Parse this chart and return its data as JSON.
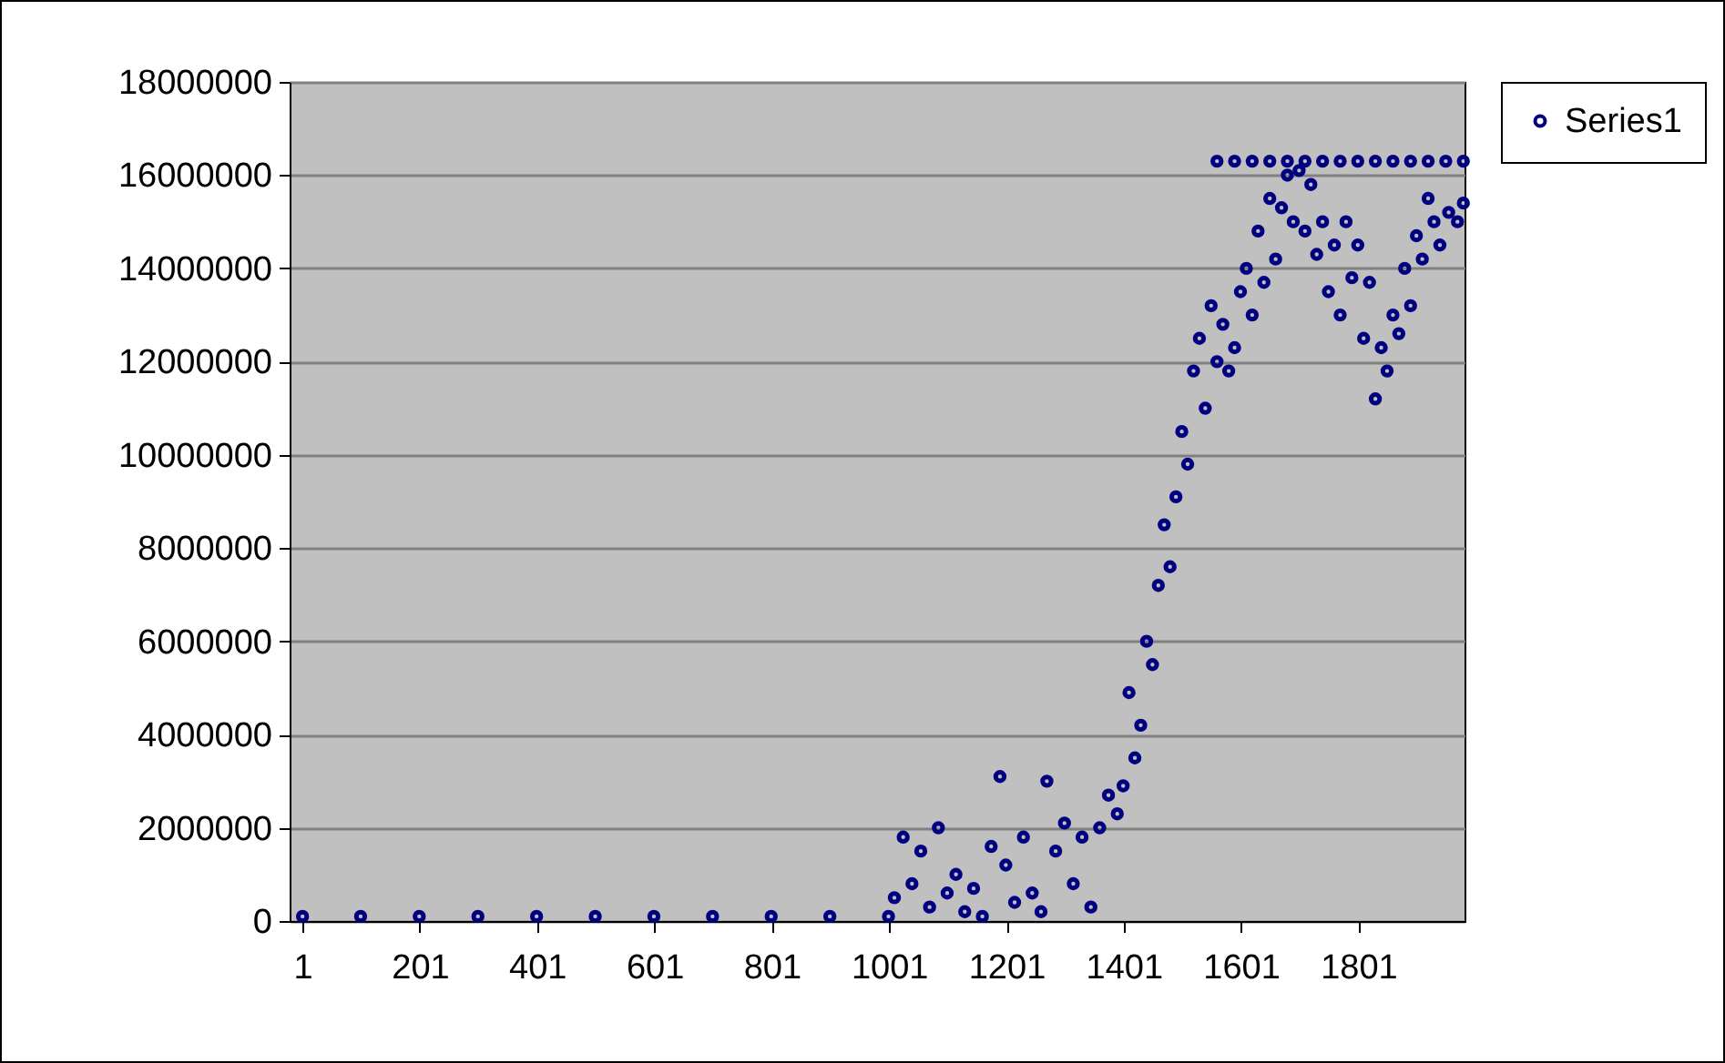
{
  "chart_data": {
    "type": "scatter",
    "marker": "circle",
    "grid": "y",
    "legend": "right",
    "xlim": [
      -21,
      1982
    ],
    "xticks": [
      1,
      201,
      401,
      601,
      801,
      1001,
      1201,
      1401,
      1601,
      1801
    ],
    "ylim": [
      0,
      18000000
    ],
    "yticks": [
      0,
      2000000,
      4000000,
      6000000,
      8000000,
      10000000,
      12000000,
      14000000,
      16000000,
      18000000
    ],
    "series": [
      {
        "name": "Series1",
        "color": "#000080",
        "x": [
          1,
          100,
          200,
          300,
          400,
          500,
          600,
          700,
          800,
          900,
          1000,
          1010,
          1025,
          1040,
          1055,
          1070,
          1085,
          1100,
          1115,
          1130,
          1145,
          1160,
          1175,
          1190,
          1200,
          1215,
          1230,
          1245,
          1260,
          1270,
          1285,
          1300,
          1315,
          1330,
          1345,
          1360,
          1375,
          1390,
          1400,
          1410,
          1420,
          1430,
          1440,
          1450,
          1460,
          1470,
          1480,
          1490,
          1500,
          1510,
          1520,
          1530,
          1540,
          1550,
          1560,
          1570,
          1580,
          1590,
          1600,
          1610,
          1620,
          1630,
          1640,
          1650,
          1660,
          1670,
          1680,
          1690,
          1700,
          1710,
          1720,
          1730,
          1740,
          1750,
          1760,
          1770,
          1780,
          1790,
          1800,
          1810,
          1820,
          1830,
          1840,
          1850,
          1860,
          1870,
          1880,
          1890,
          1900,
          1910,
          1920,
          1930,
          1940,
          1955,
          1970,
          1980,
          1560,
          1590,
          1620,
          1650,
          1680,
          1710,
          1740,
          1770,
          1800,
          1830,
          1860,
          1890,
          1920,
          1950,
          1980
        ],
        "values": [
          100000,
          100000,
          100000,
          100000,
          100000,
          100000,
          100000,
          100000,
          100000,
          100000,
          100000,
          500000,
          1800000,
          800000,
          1500000,
          300000,
          2000000,
          600000,
          1000000,
          200000,
          700000,
          100000,
          1600000,
          3100000,
          1200000,
          400000,
          1800000,
          600000,
          200000,
          3000000,
          1500000,
          2100000,
          800000,
          1800000,
          300000,
          2000000,
          2700000,
          2300000,
          2900000,
          4900000,
          3500000,
          4200000,
          6000000,
          5500000,
          7200000,
          8500000,
          7600000,
          9100000,
          10500000,
          9800000,
          11800000,
          12500000,
          11000000,
          13200000,
          12000000,
          12800000,
          11800000,
          12300000,
          13500000,
          14000000,
          13000000,
          14800000,
          13700000,
          15500000,
          14200000,
          15300000,
          16000000,
          15000000,
          16100000,
          14800000,
          15800000,
          14300000,
          15000000,
          13500000,
          14500000,
          13000000,
          15000000,
          13800000,
          14500000,
          12500000,
          13700000,
          11200000,
          12300000,
          11800000,
          13000000,
          12600000,
          14000000,
          13200000,
          14700000,
          14200000,
          15500000,
          15000000,
          14500000,
          15200000,
          15000000,
          15400000,
          16300000,
          16300000,
          16300000,
          16300000,
          16300000,
          16300000,
          16300000,
          16300000,
          16300000,
          16300000,
          16300000,
          16300000,
          16300000,
          16300000,
          16300000
        ]
      }
    ]
  }
}
